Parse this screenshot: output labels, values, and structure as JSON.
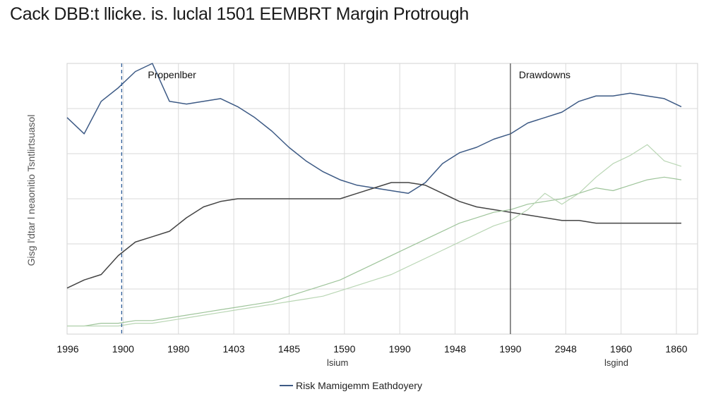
{
  "chart_data": {
    "type": "line",
    "title": "Cack DBB:t llicke. is. luclal 1501 EEMBRT Margin Protrough",
    "ylabel": "Gisg l'dtar l neaonitio Tsntlirtsuasol",
    "xlabel": "lsium",
    "xlabel_right": "lsgind",
    "x_tick_labels": [
      "1996",
      "1900",
      "1980",
      "1403",
      "1485",
      "1590",
      "1990",
      "1948",
      "1990",
      "2948",
      "1960",
      "1860"
    ],
    "ylim": [
      0,
      100
    ],
    "grid": true,
    "annotations": [
      {
        "text": "Propenlber",
        "at_tick_index": 1
      },
      {
        "text": "Drawdowns",
        "at_tick_index": 8
      }
    ],
    "legend": {
      "position": "bottom-center",
      "entries": [
        "Risk Mamigemm Eathdoyery"
      ]
    },
    "series": [
      {
        "name": "Risk Mamigemm Eathdoyery",
        "color": "#3d5a85",
        "values": [
          80,
          74,
          86,
          91,
          97,
          100,
          86,
          85,
          86,
          87,
          84,
          80,
          75,
          69,
          64,
          60,
          57,
          55,
          54,
          53,
          52,
          56,
          63,
          67,
          69,
          72,
          74,
          78,
          80,
          82,
          86,
          88,
          88,
          89,
          88,
          87,
          84
        ]
      },
      {
        "color": "#444444",
        "values": [
          17,
          20,
          22,
          29,
          34,
          36,
          38,
          43,
          47,
          49,
          50,
          50,
          50,
          50,
          50,
          50,
          50,
          52,
          54,
          56,
          56,
          55,
          52,
          49,
          47,
          46,
          45,
          44,
          43,
          42,
          42,
          41,
          41,
          41,
          41,
          41,
          41
        ]
      },
      {
        "color": "#9ec49a",
        "values": [
          3,
          3,
          4,
          4,
          5,
          5,
          6,
          7,
          8,
          9,
          10,
          11,
          12,
          14,
          16,
          18,
          20,
          23,
          26,
          29,
          32,
          35,
          38,
          41,
          43,
          45,
          46,
          48,
          49,
          50,
          52,
          54,
          53,
          55,
          57,
          58,
          57
        ]
      },
      {
        "color": "#b9d6b4",
        "values": [
          3,
          3,
          3,
          3,
          4,
          4,
          5,
          6,
          7,
          8,
          9,
          10,
          11,
          12,
          13,
          14,
          16,
          18,
          20,
          22,
          25,
          28,
          31,
          34,
          37,
          40,
          42,
          46,
          52,
          48,
          52,
          58,
          63,
          66,
          70,
          64,
          62
        ]
      }
    ]
  }
}
